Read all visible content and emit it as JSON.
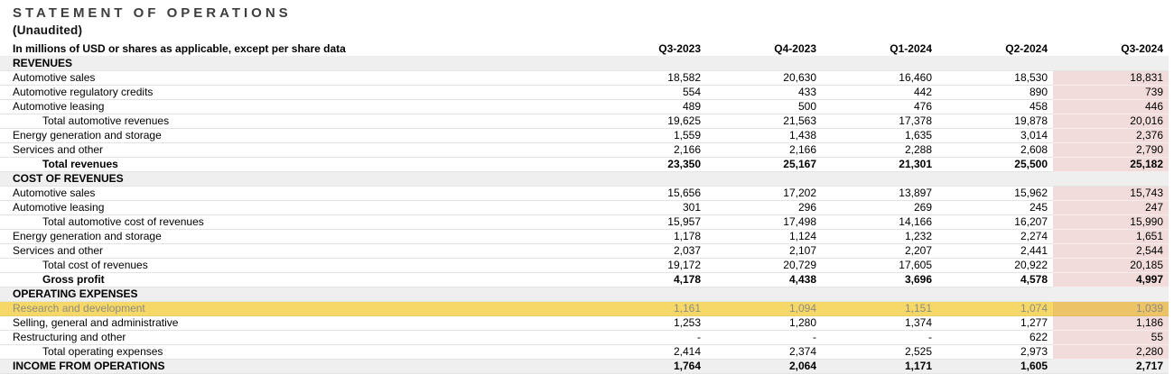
{
  "page": {
    "title": "STATEMENT OF OPERATIONS",
    "subtitle": "(Unaudited)"
  },
  "colors": {
    "section_bg": "#efefef",
    "column_highlight": "#f2dcdb",
    "row_highlight": "#f6d869",
    "overlap_highlight": "#ecc366",
    "highlight_text": "#8f8c7c"
  },
  "table": {
    "unit_note": "In millions of USD or shares as applicable, except per share data",
    "columns": [
      "Q3-2023",
      "Q4-2023",
      "Q1-2024",
      "Q2-2024",
      "Q3-2024"
    ],
    "highlighted_column": "Q3-2024",
    "highlighted_row": "Research and development",
    "rows": [
      {
        "label": "REVENUES",
        "type": "section",
        "values": [
          "",
          "",
          "",
          "",
          ""
        ]
      },
      {
        "label": "Automotive sales",
        "type": "item",
        "values": [
          "18,582",
          "20,630",
          "16,460",
          "18,530",
          "18,831"
        ]
      },
      {
        "label": "Automotive regulatory credits",
        "type": "item",
        "values": [
          "554",
          "433",
          "442",
          "890",
          "739"
        ]
      },
      {
        "label": "Automotive leasing",
        "type": "item",
        "values": [
          "489",
          "500",
          "476",
          "458",
          "446"
        ]
      },
      {
        "label": "Total automotive revenues",
        "type": "subtotal",
        "values": [
          "19,625",
          "21,563",
          "17,378",
          "19,878",
          "20,016"
        ]
      },
      {
        "label": "Energy generation and storage",
        "type": "item",
        "values": [
          "1,559",
          "1,438",
          "1,635",
          "3,014",
          "2,376"
        ]
      },
      {
        "label": "Services and other",
        "type": "item",
        "values": [
          "2,166",
          "2,166",
          "2,288",
          "2,608",
          "2,790"
        ]
      },
      {
        "label": "Total revenues",
        "type": "total-bold",
        "values": [
          "23,350",
          "25,167",
          "21,301",
          "25,500",
          "25,182"
        ]
      },
      {
        "label": "COST OF REVENUES",
        "type": "section",
        "values": [
          "",
          "",
          "",
          "",
          ""
        ]
      },
      {
        "label": "Automotive sales",
        "type": "item",
        "values": [
          "15,656",
          "17,202",
          "13,897",
          "15,962",
          "15,743"
        ]
      },
      {
        "label": "Automotive leasing",
        "type": "item",
        "values": [
          "301",
          "296",
          "269",
          "245",
          "247"
        ]
      },
      {
        "label": "Total automotive cost of revenues",
        "type": "subtotal",
        "values": [
          "15,957",
          "17,498",
          "14,166",
          "16,207",
          "15,990"
        ]
      },
      {
        "label": "Energy generation and storage",
        "type": "item",
        "values": [
          "1,178",
          "1,124",
          "1,232",
          "2,274",
          "1,651"
        ]
      },
      {
        "label": "Services and other",
        "type": "item",
        "values": [
          "2,037",
          "2,107",
          "2,207",
          "2,441",
          "2,544"
        ]
      },
      {
        "label": "Total cost of revenues",
        "type": "subtotal",
        "values": [
          "19,172",
          "20,729",
          "17,605",
          "20,922",
          "20,185"
        ]
      },
      {
        "label": "Gross profit",
        "type": "total-bold",
        "values": [
          "4,178",
          "4,438",
          "3,696",
          "4,578",
          "4,997"
        ]
      },
      {
        "label": "OPERATING EXPENSES",
        "type": "section",
        "values": [
          "",
          "",
          "",
          "",
          ""
        ]
      },
      {
        "label": "Research and development",
        "type": "highlight",
        "values": [
          "1,161",
          "1,094",
          "1,151",
          "1,074",
          "1,039"
        ]
      },
      {
        "label": "Selling, general and administrative",
        "type": "item",
        "values": [
          "1,253",
          "1,280",
          "1,374",
          "1,277",
          "1,186"
        ]
      },
      {
        "label": "Restructuring and other",
        "type": "item",
        "values": [
          "-",
          "-",
          "-",
          "622",
          "55"
        ]
      },
      {
        "label": "Total operating expenses",
        "type": "subtotal",
        "values": [
          "2,414",
          "2,374",
          "2,525",
          "2,973",
          "2,280"
        ]
      },
      {
        "label": "INCOME FROM OPERATIONS",
        "type": "grand",
        "values": [
          "1,764",
          "2,064",
          "1,171",
          "1,605",
          "2,717"
        ]
      }
    ]
  }
}
